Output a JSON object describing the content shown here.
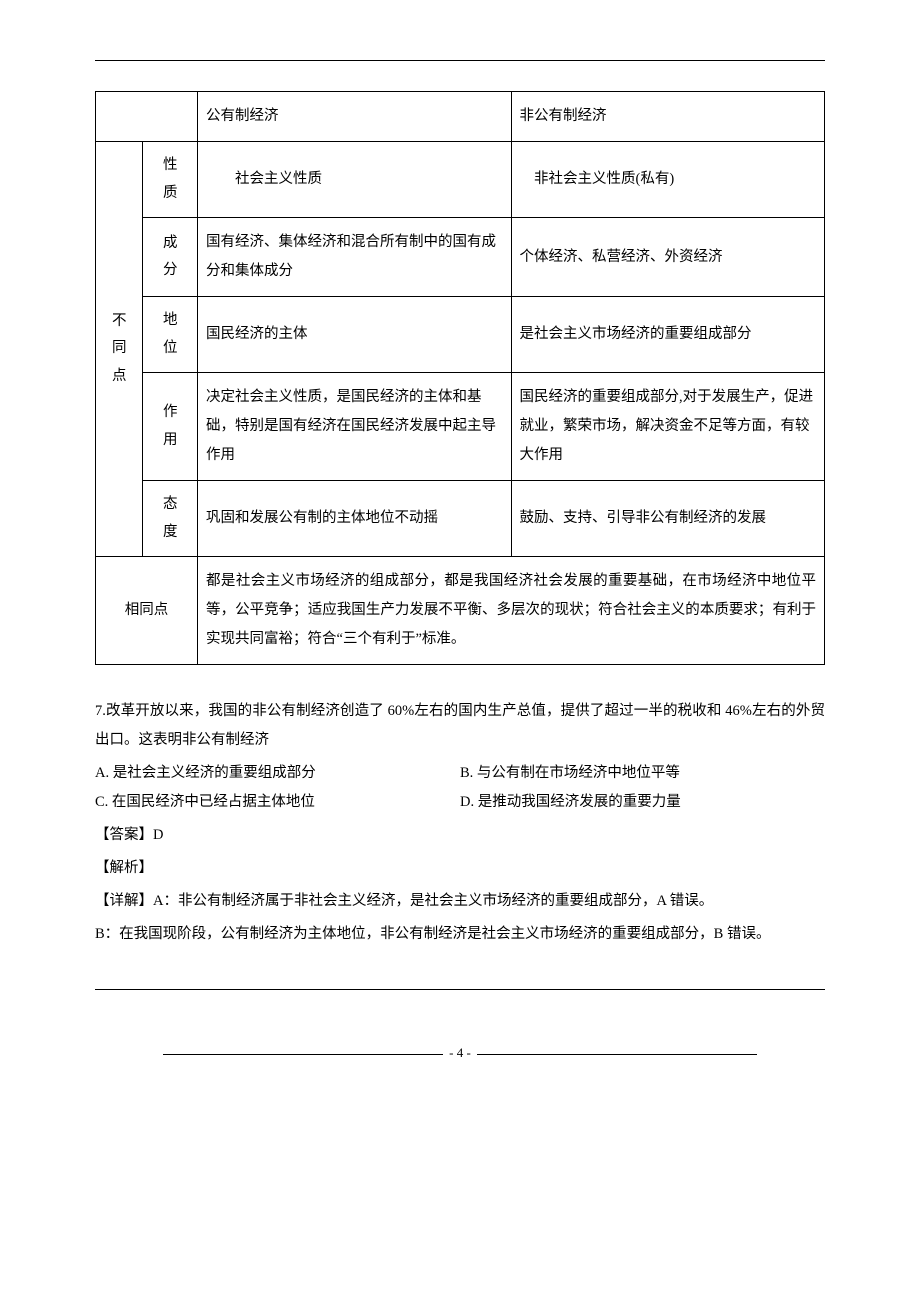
{
  "table": {
    "header": {
      "col1": "公有制经济",
      "col2": "非公有制经济"
    },
    "diff_label": "不\n同\n点",
    "rows": [
      {
        "label": "性\n质",
        "c1": "　　社会主义性质",
        "c2": "　非社会主义性质(私有)"
      },
      {
        "label": "成\n分",
        "c1": "国有经济、集体经济和混合所有制中的国有成分和集体成分",
        "c2": "个体经济、私营经济、外资经济"
      },
      {
        "label": "地\n位",
        "c1": "国民经济的主体",
        "c2": "是社会主义市场经济的重要组成部分"
      },
      {
        "label": "作\n用",
        "c1": "决定社会主义性质，是国民经济的主体和基础，特别是国有经济在国民经济发展中起主导作用",
        "c2": "国民经济的重要组成部分,对于发展生产，促进就业，繁荣市场，解决资金不足等方面，有较大作用"
      },
      {
        "label": "态\n度",
        "c1": "巩固和发展公有制的主体地位不动摇",
        "c2": "鼓励、支持、引导非公有制经济的发展"
      }
    ],
    "same_label": "相同点",
    "same_text": "都是社会主义市场经济的组成部分，都是我国经济社会发展的重要基础，在市场经济中地位平等，公平竞争；适应我国生产力发展不平衡、多层次的现状；符合社会主义的本质要求；有利于实现共同富裕；符合“三个有利于”标准。"
  },
  "question": {
    "stem": "7.改革开放以来，我国的非公有制经济创造了 60%左右的国内生产总值，提供了超过一半的税收和 46%左右的外贸出口。这表明非公有制经济",
    "optA": "A. 是社会主义经济的重要组成部分",
    "optB": "B. 与公有制在市场经济中地位平等",
    "optC": "C. 在国民经济中已经占据主体地位",
    "optD": "D. 是推动我国经济发展的重要力量",
    "answer": "【答案】D",
    "explain_label": "【解析】",
    "detail1": "【详解】A：非公有制经济属于非社会主义经济，是社会主义市场经济的重要组成部分，A 错误。",
    "detail2": "B：在我国现阶段，公有制经济为主体地位，非公有制经济是社会主义市场经济的重要组成部分，B 错误。"
  },
  "page_number": "- 4 -"
}
